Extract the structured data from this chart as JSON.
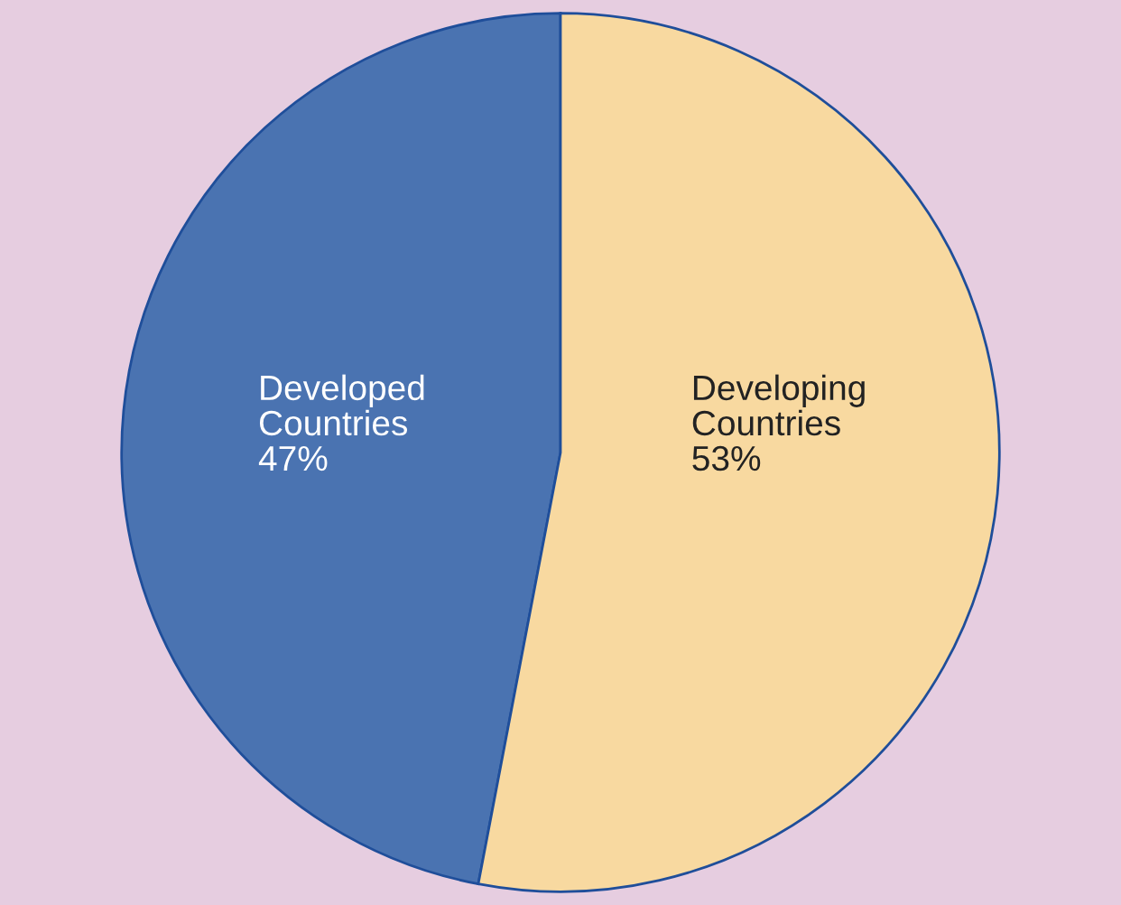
{
  "chart_data": {
    "type": "pie",
    "categories": [
      "Developed Countries",
      "Developing Countries"
    ],
    "values": [
      47,
      53
    ],
    "value_labels": [
      "47%",
      "53%"
    ],
    "colors": [
      "#4a73b1",
      "#f8d9a0"
    ]
  }
}
